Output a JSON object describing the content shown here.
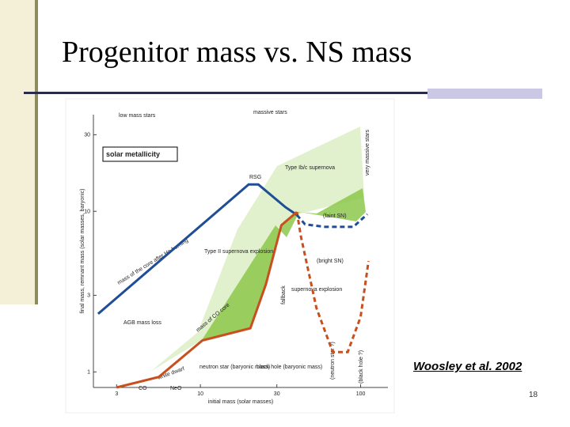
{
  "slide": {
    "title": "Progenitor mass vs. NS mass",
    "citation": "Woosley et al. 2002",
    "page_number": "18"
  },
  "chart_data": {
    "type": "line",
    "xlabel": "initial mass (solar masses)",
    "ylabel": "final mass, remnant mass (solar masses, baryonic)",
    "xlog": true,
    "ylog": true,
    "xlim": [
      2.15,
      148
    ],
    "ylim": [
      0.8,
      40
    ],
    "xticks": [
      3,
      10,
      30,
      100
    ],
    "yticks": [
      1,
      3,
      10,
      30
    ],
    "series": [
      {
        "color": "#1f4e96",
        "style": "solid",
        "x": [
          2.3,
          20,
          23,
          34,
          40
        ],
        "values": [
          2.3,
          14.7,
          14.7,
          10.6,
          9.5
        ]
      },
      {
        "color": "#c8501e",
        "style": "solid",
        "x": [
          3,
          5.5,
          10.3,
          20.5,
          25.6,
          32,
          40
        ],
        "values": [
          0.8,
          0.93,
          1.57,
          1.87,
          3.5,
          8.2,
          9.9
        ]
      },
      {
        "color": "#c8501e",
        "style": "dashed",
        "x": [
          40,
          42.5,
          53,
          67,
          83,
          100,
          112
        ],
        "values": [
          9.9,
          6.9,
          2.5,
          1.33,
          1.33,
          2.2,
          4.9
        ]
      },
      {
        "color": "#1f4e96",
        "style": "dashed",
        "x": [
          40,
          45,
          60,
          90,
          110
        ],
        "values": [
          9.5,
          8.3,
          8.0,
          8.0,
          9.6
        ]
      }
    ],
    "annotations": [
      "low mass stars",
      "massive stars",
      "solar metallicity",
      "Type Ib/c supernova",
      "Type II supernova explosion",
      "AGB mass loss",
      "neutron star (baryonic mass)",
      "black hole (baryonic mass)",
      "white dwarf",
      "CO",
      "NeO",
      "(faint SN)",
      "(bright SN)",
      "supernova explosion",
      "fallback",
      "(neutron star ?)",
      "(black hole ?)",
      "very massive stars",
      "RSG",
      "mass of the core after He burning",
      "mass of CO core"
    ]
  }
}
